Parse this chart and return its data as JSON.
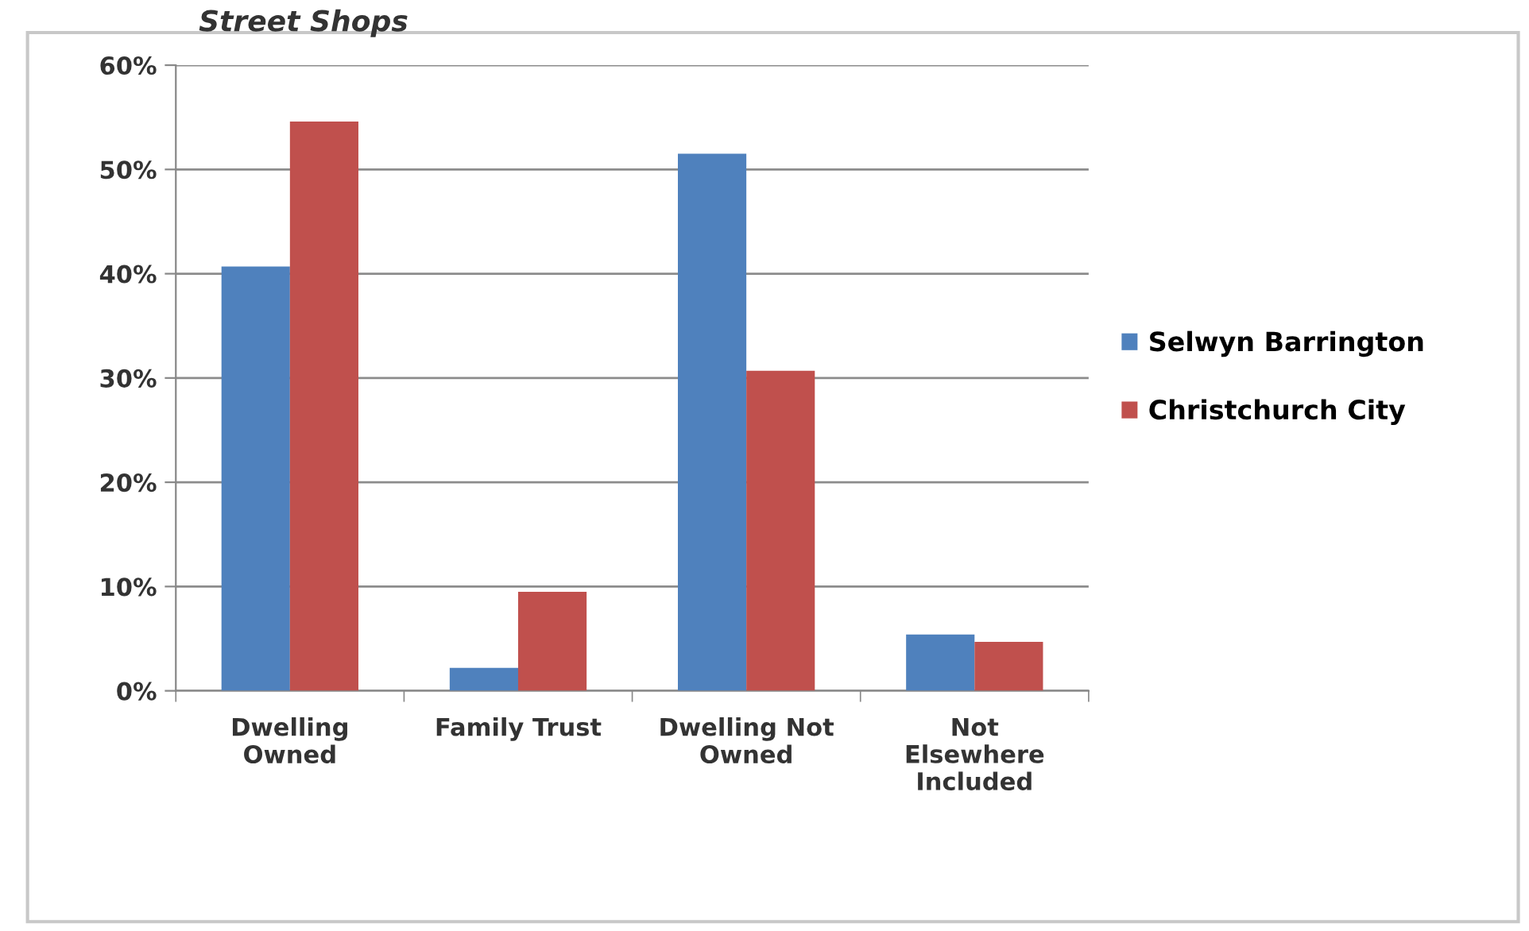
{
  "chart_data": {
    "type": "bar",
    "categories": [
      "Dwelling\nOwned",
      "Family Trust",
      "Dwelling Not\nOwned",
      "Not\nElsewhere\nIncluded"
    ],
    "series": [
      {
        "name": "Selwyn Barrington",
        "color": "#4f81bd",
        "values": [
          40.7,
          2.2,
          51.5,
          5.4
        ]
      },
      {
        "name": "Christchurch City",
        "color": "#c0504d",
        "values": [
          54.6,
          9.5,
          30.7,
          4.7
        ]
      }
    ],
    "ylim": [
      0,
      60
    ],
    "yticks": [
      {
        "value": 0,
        "label": "0%"
      },
      {
        "value": 10,
        "label": "10%"
      },
      {
        "value": 20,
        "label": "20%"
      },
      {
        "value": 30,
        "label": "30%"
      },
      {
        "value": 40,
        "label": "40%"
      },
      {
        "value": 50,
        "label": "50%"
      },
      {
        "value": 60,
        "label": "60%"
      }
    ],
    "grid": "y",
    "legend": "right",
    "annotations": [
      "Street Shops"
    ]
  }
}
